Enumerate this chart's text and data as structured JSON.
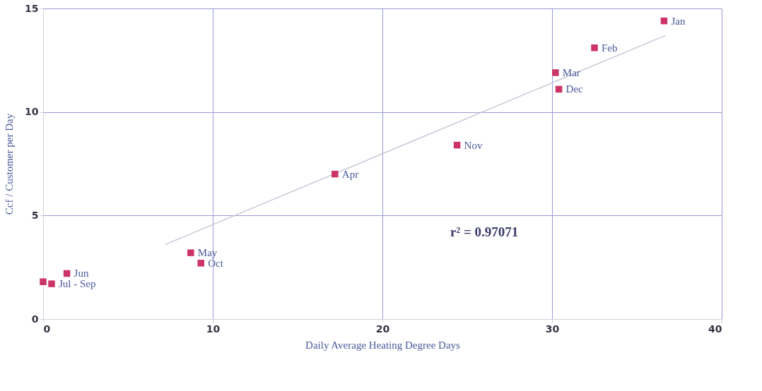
{
  "chart_data": {
    "type": "scatter",
    "xlabel": "Daily Average Heating Degree Days",
    "ylabel": "Ccf / Customer per Day",
    "xlim": [
      0,
      40
    ],
    "xticks": [
      0,
      10,
      20,
      30,
      40
    ],
    "ylim": [
      0,
      15
    ],
    "yticks": [
      0,
      5,
      10,
      15
    ],
    "grid": true,
    "marker": "square",
    "annotations": [
      "r² = 0.97071"
    ],
    "series": [
      {
        "type": "line",
        "line_style": "solid",
        "marker": "none",
        "color": "#c8c8d8",
        "x": [
          7.2,
          36.7
        ],
        "values": [
          3.6,
          13.7
        ]
      },
      {
        "name": "Jan",
        "color": "#cc3366",
        "x": [
          36.6
        ],
        "values": [
          14.4
        ]
      },
      {
        "name": "Feb",
        "color": "#cc3366",
        "x": [
          32.5
        ],
        "values": [
          13.1
        ]
      },
      {
        "name": "Mar",
        "color": "#cc3366",
        "x": [
          30.2
        ],
        "values": [
          11.9
        ]
      },
      {
        "name": "Dec",
        "color": "#cc3366",
        "x": [
          30.4
        ],
        "values": [
          11.1
        ]
      },
      {
        "name": "Nov",
        "color": "#cc3366",
        "x": [
          24.4
        ],
        "values": [
          8.4
        ]
      },
      {
        "name": "Apr",
        "color": "#cc3366",
        "x": [
          17.2
        ],
        "values": [
          7.0
        ]
      },
      {
        "name": "May",
        "color": "#cc3366",
        "x": [
          8.7
        ],
        "values": [
          3.2
        ]
      },
      {
        "name": "Oct",
        "color": "#cc3366",
        "x": [
          9.3
        ],
        "values": [
          2.7
        ]
      },
      {
        "name": "Jun",
        "color": "#cc3366",
        "x": [
          1.4
        ],
        "values": [
          2.2
        ]
      },
      {
        "name": "Jul - Sep",
        "color": "#cc3366",
        "x": [
          0,
          0.5
        ],
        "values": [
          1.8,
          1.7
        ]
      }
    ]
  }
}
